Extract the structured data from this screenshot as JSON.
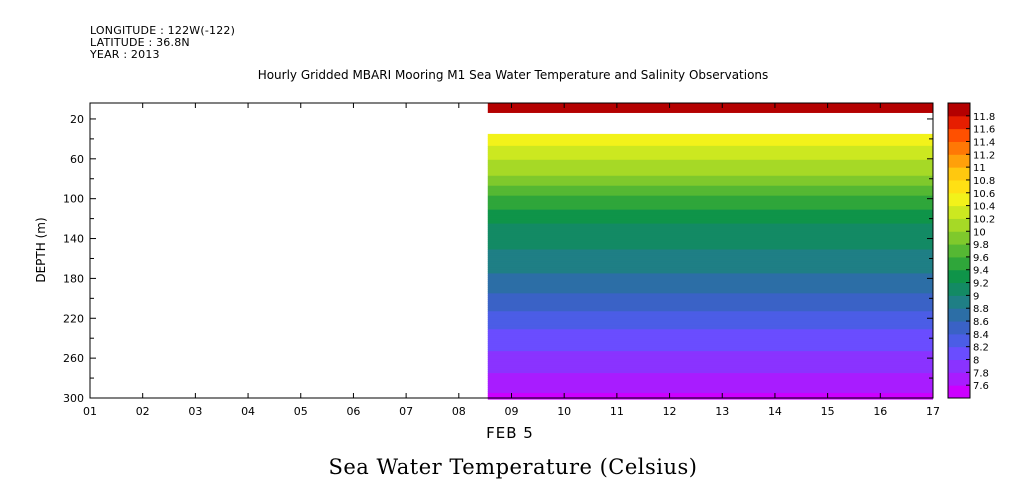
{
  "header": {
    "longitude": "LONGITUDE : 122W(-122)",
    "latitude": "LATITUDE : 36.8N",
    "year": "YEAR : 2013"
  },
  "chart_data": {
    "type": "heatmap",
    "title": "Hourly Gridded MBARI Mooring M1 Sea Water Temperature and Salinity Observations",
    "subtitle": "Sea Water Temperature (Celsius)",
    "xlabel": "FEB 5",
    "ylabel": "DEPTH (m)",
    "x_ticks": [
      "01",
      "02",
      "03",
      "04",
      "05",
      "06",
      "07",
      "08",
      "09",
      "10",
      "11",
      "12",
      "13",
      "14",
      "15",
      "16",
      "17"
    ],
    "xlim": [
      1,
      17
    ],
    "y_ticks": [
      20,
      60,
      100,
      140,
      180,
      220,
      260,
      300
    ],
    "ylim": [
      300,
      4
    ],
    "data_start_x": 8.55,
    "colorbar": {
      "levels": [
        7.6,
        7.8,
        8,
        8.2,
        8.4,
        8.6,
        8.8,
        9,
        9.2,
        9.4,
        9.6,
        9.8,
        10,
        10.2,
        10.4,
        10.6,
        10.8,
        11,
        11.2,
        11.4,
        11.6,
        11.8
      ],
      "colors": [
        "#cc00ff",
        "#a81cff",
        "#8a33ff",
        "#6a4dff",
        "#4b5de6",
        "#3a62c6",
        "#2c6ea6",
        "#1f7f85",
        "#138a64",
        "#0f9449",
        "#2fa63a",
        "#55b833",
        "#7fc92c",
        "#a6d926",
        "#cce820",
        "#f2f21a",
        "#ffe014",
        "#ffc80f",
        "#ffa00a",
        "#ff7805",
        "#ff5000",
        "#e61e00",
        "#b40000"
      ]
    },
    "profile_depth": [
      10,
      35,
      40,
      60,
      80,
      100,
      120,
      140,
      160,
      180,
      200,
      220,
      240,
      260,
      280,
      300
    ],
    "profile_temp": [
      11.8,
      null,
      10.5,
      10.2,
      9.95,
      9.55,
      9.25,
      9.05,
      8.95,
      8.75,
      8.55,
      8.3,
      8.1,
      7.95,
      7.75,
      7.55
    ],
    "gaps": [
      [
        14,
        35
      ]
    ]
  }
}
